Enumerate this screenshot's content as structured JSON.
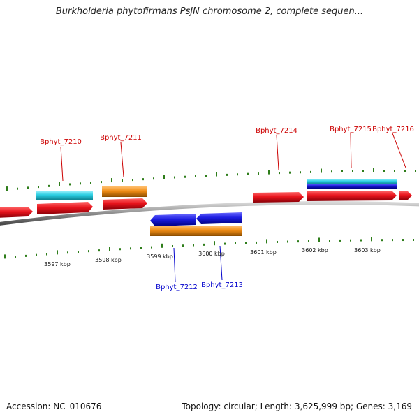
{
  "header": {
    "title": "Burkholderia phytofirmans PsJN chromosome 2, complete sequen..."
  },
  "footer": {
    "accession": "Accession: NC_010676",
    "summary": "Topology: circular; Length: 3,625,999 bp; Genes: 3,169"
  },
  "colors": {
    "forward_gene": "#e8141c",
    "reverse_gene": "#1c1ce0",
    "orange_feature": "#f08c14",
    "cyan_feature": "#28cce0",
    "backbone": "#8c8c8c",
    "tick": "#2e7d1a",
    "forward_label": "#cc0000",
    "reverse_label": "#0000cc"
  },
  "gene_labels": {
    "forward": [
      "Bphyt_7210",
      "Bphyt_7211",
      "Bphyt_7214",
      "Bphyt_7215",
      "Bphyt_7216"
    ],
    "reverse": [
      "Bphyt_7212",
      "Bphyt_7213"
    ]
  },
  "kbp_labels": [
    "3597 kbp",
    "3598 kbp",
    "3599 kbp",
    "3600 kbp",
    "3601 kbp",
    "3602 kbp",
    "3603 kbp"
  ]
}
